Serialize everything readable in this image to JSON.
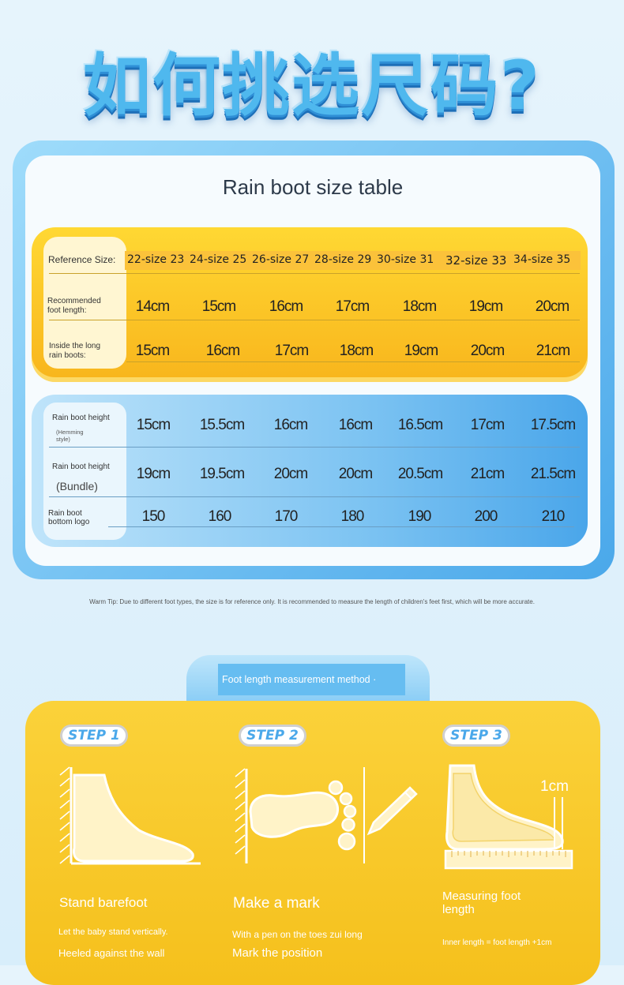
{
  "heading": "如何挑选尺码?",
  "table_title": "Rain boot size table",
  "size_table": {
    "reference_label": "Reference Size:",
    "reference_sizes": [
      "22-size 23",
      "24-size 25",
      "26-size 27",
      "28-size 29",
      "30-size 31",
      "32-size 33",
      "34-size 35"
    ],
    "foot_length_label_1": "Recommended",
    "foot_length_label_2": "foot length:",
    "foot_length": [
      "14cm",
      "15cm",
      "16cm",
      "17cm",
      "18cm",
      "19cm",
      "20cm"
    ],
    "inner_label_1": "Inside the long",
    "inner_label_2": "rain boots:",
    "inner_length": [
      "15cm",
      "16cm",
      "17cm",
      "18cm",
      "19cm",
      "20cm",
      "21cm"
    ],
    "height_hem_label": "Rain boot height",
    "height_hem_sub_1": "(Hemming",
    "height_hem_sub_2": "style)",
    "height_hem": [
      "15cm",
      "15.5cm",
      "16cm",
      "16cm",
      "16.5cm",
      "17cm",
      "17.5cm"
    ],
    "height_bundle_label": "Rain boot height",
    "height_bundle_sub": "(Bundle)",
    "height_bundle": [
      "19cm",
      "19.5cm",
      "20cm",
      "20cm",
      "20.5cm",
      "21cm",
      "21.5cm"
    ],
    "logo_label_1": "Rain boot",
    "logo_label_2": "bottom logo",
    "logo": [
      "150",
      "160",
      "170",
      "180",
      "190",
      "200",
      "210"
    ]
  },
  "warm_tip": "Warm Tip: Due to different foot types, the size is for reference only. It is recommended to measure the length of children's feet first, which will be more accurate.",
  "method_title": "Foot length measurement method ·",
  "steps": [
    {
      "badge": "STEP 1",
      "title": "Stand barefoot",
      "desc_1": "Let the baby stand vertically.",
      "desc_2": "Heeled against the wall"
    },
    {
      "badge": "STEP 2",
      "title": "Make a mark",
      "desc_1": "With a pen on the toes zui long",
      "desc_2": "Mark the position"
    },
    {
      "badge": "STEP 3",
      "title_1": "Measuring foot",
      "title_2": "length",
      "desc_1": "Inner length = foot length +1cm",
      "annotation": "1cm"
    }
  ],
  "colors": {
    "accent_blue": "#4aa8ea",
    "accent_yellow": "#f8b51c"
  }
}
